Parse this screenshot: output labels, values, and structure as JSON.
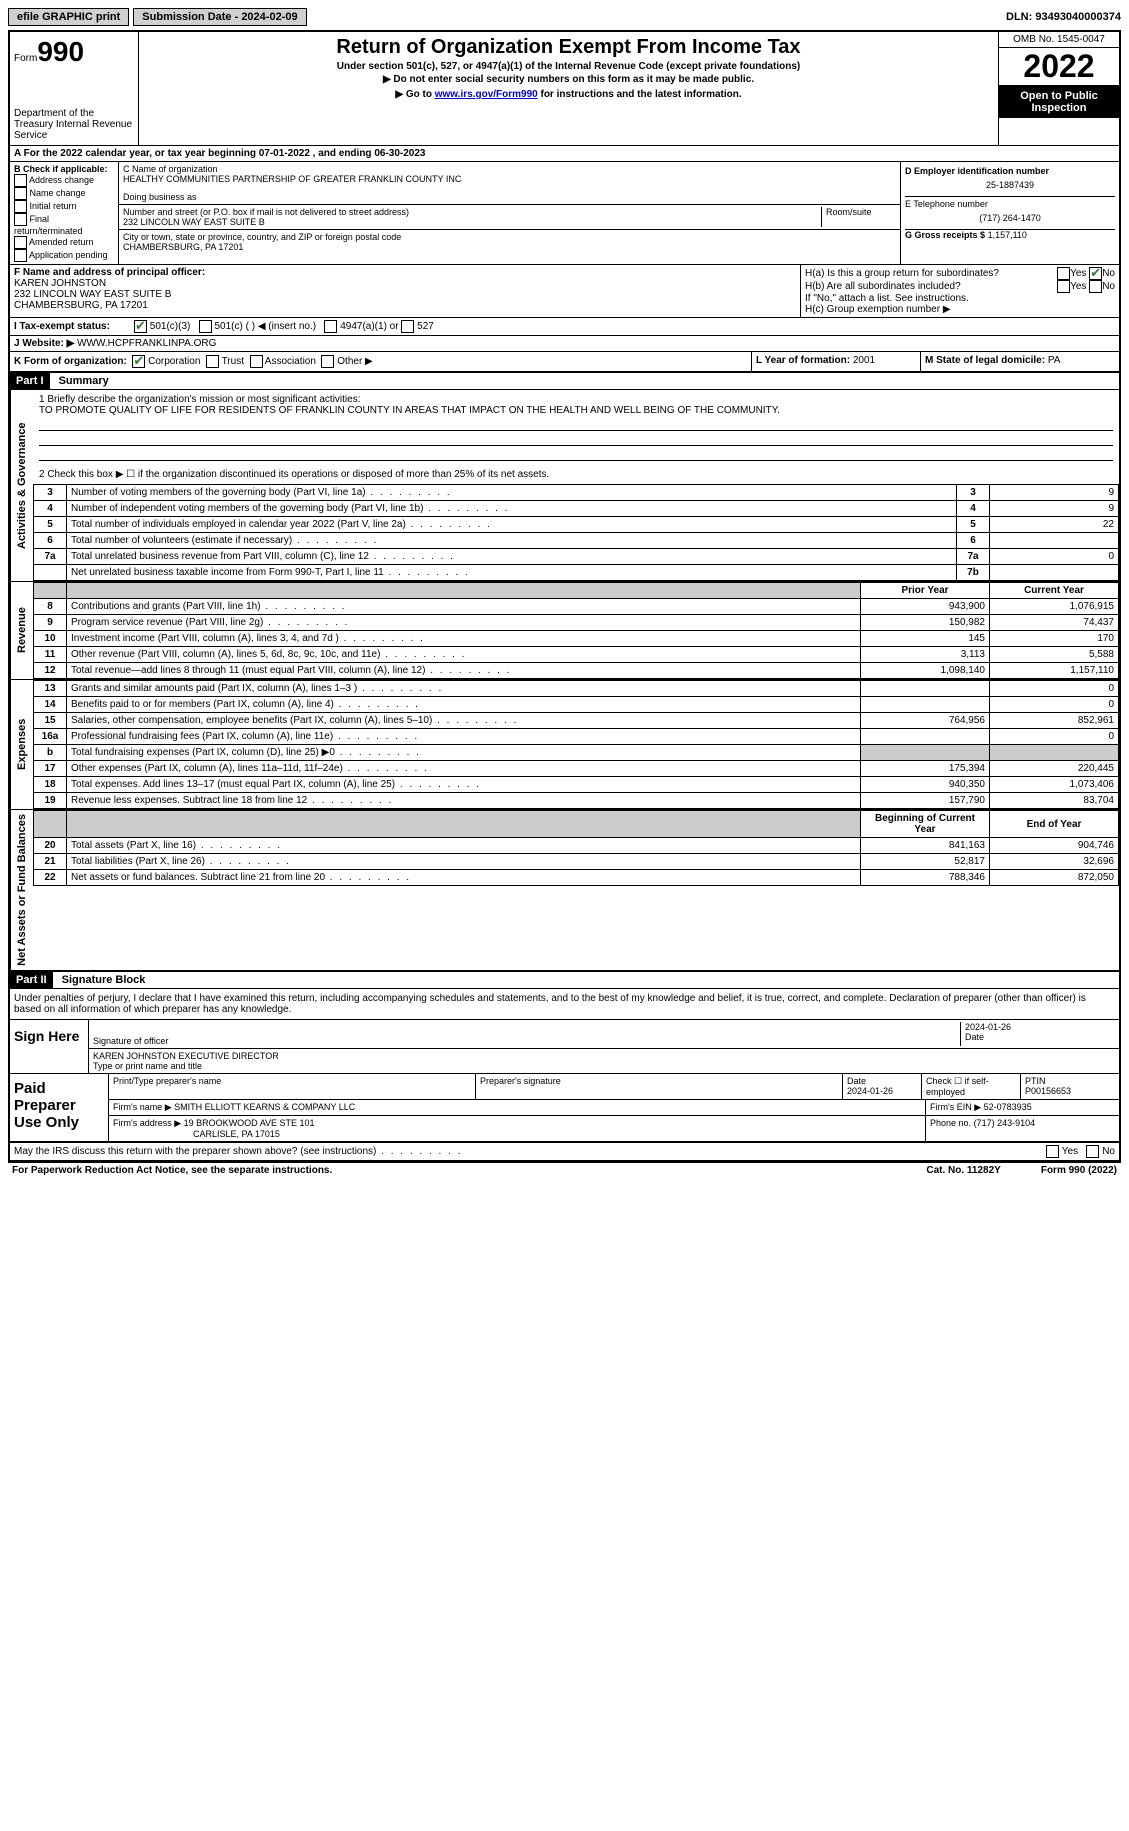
{
  "topbar": {
    "efile": "efile GRAPHIC print",
    "submission_label": "Submission Date - 2024-02-09",
    "dln": "DLN: 93493040000374"
  },
  "header": {
    "form_word": "Form",
    "form_num": "990",
    "dept": "Department of the Treasury Internal Revenue Service",
    "title": "Return of Organization Exempt From Income Tax",
    "sub1": "Under section 501(c), 527, or 4947(a)(1) of the Internal Revenue Code (except private foundations)",
    "sub2": "▶ Do not enter social security numbers on this form as it may be made public.",
    "sub3_pre": "▶ Go to ",
    "sub3_link": "www.irs.gov/Form990",
    "sub3_post": " for instructions and the latest information.",
    "omb": "OMB No. 1545-0047",
    "year": "2022",
    "open": "Open to Public Inspection"
  },
  "rowA": "A For the 2022 calendar year, or tax year beginning 07-01-2022    , and ending 06-30-2023",
  "colB": {
    "title": "B Check if applicable:",
    "opts": [
      "Address change",
      "Name change",
      "Initial return",
      "Final return/terminated",
      "Amended return",
      "Application pending"
    ]
  },
  "colC": {
    "name_label": "C Name of organization",
    "name": "HEALTHY COMMUNITIES PARTNERSHIP OF GREATER FRANKLIN COUNTY INC",
    "dba_label": "Doing business as",
    "street_label": "Number and street (or P.O. box if mail is not delivered to street address)",
    "room_label": "Room/suite",
    "street": "232 LINCOLN WAY EAST SUITE B",
    "city_label": "City or town, state or province, country, and ZIP or foreign postal code",
    "city": "CHAMBERSBURG, PA  17201"
  },
  "colD": {
    "ein_label": "D Employer identification number",
    "ein": "25-1887439",
    "phone_label": "E Telephone number",
    "phone": "(717) 264-1470",
    "gross_label": "G Gross receipts $",
    "gross": "1,157,110"
  },
  "rowF": {
    "label": "F  Name and address of principal officer:",
    "name": "KAREN JOHNSTON",
    "addr1": "232 LINCOLN WAY EAST SUITE B",
    "addr2": "CHAMBERSBURG, PA  17201"
  },
  "rowH": {
    "ha": "H(a)  Is this a group return for subordinates?",
    "hb": "H(b)  Are all subordinates included?",
    "hb_note": "If \"No,\" attach a list. See instructions.",
    "hc": "H(c)  Group exemption number ▶",
    "yes": "Yes",
    "no": "No"
  },
  "rowI": {
    "label": "I     Tax-exempt status:",
    "o1": "501(c)(3)",
    "o2": "501(c) (  ) ◀ (insert no.)",
    "o3": "4947(a)(1) or",
    "o4": "527"
  },
  "rowJ": {
    "label": "J    Website: ▶",
    "val": "WWW.HCPFRANKLINPA.ORG"
  },
  "rowK": {
    "label": "K Form of organization:",
    "o1": "Corporation",
    "o2": "Trust",
    "o3": "Association",
    "o4": "Other ▶",
    "l_label": "L Year of formation:",
    "l_val": "2001",
    "m_label": "M State of legal domicile:",
    "m_val": "PA"
  },
  "part1": {
    "part": "Part I",
    "title": "Summary",
    "vtab1": "Activities & Governance",
    "vtab2": "Revenue",
    "vtab3": "Expenses",
    "vtab4": "Net Assets or Fund Balances",
    "line1_label": "1  Briefly describe the organization's mission or most significant activities:",
    "line1_text": "TO PROMOTE QUALITY OF LIFE FOR RESIDENTS OF FRANKLIN COUNTY IN AREAS THAT IMPACT ON THE HEALTH AND WELL BEING OF THE COMMUNITY.",
    "line2": "2    Check this box ▶ ☐  if the organization discontinued its operations or disposed of more than 25% of its net assets.",
    "rows_ag": [
      {
        "n": "3",
        "label": "Number of voting members of the governing body (Part VI, line 1a)",
        "box": "3",
        "val": "9"
      },
      {
        "n": "4",
        "label": "Number of independent voting members of the governing body (Part VI, line 1b)",
        "box": "4",
        "val": "9"
      },
      {
        "n": "5",
        "label": "Total number of individuals employed in calendar year 2022 (Part V, line 2a)",
        "box": "5",
        "val": "22"
      },
      {
        "n": "6",
        "label": "Total number of volunteers (estimate if necessary)",
        "box": "6",
        "val": ""
      },
      {
        "n": "7a",
        "label": "Total unrelated business revenue from Part VIII, column (C), line 12",
        "box": "7a",
        "val": "0"
      },
      {
        "n": "",
        "label": "Net unrelated business taxable income from Form 990-T, Part I, line 11",
        "box": "7b",
        "val": ""
      }
    ],
    "prior_year": "Prior Year",
    "current_year": "Current Year",
    "rows_rev": [
      {
        "n": "8",
        "label": "Contributions and grants (Part VIII, line 1h)",
        "py": "943,900",
        "cy": "1,076,915"
      },
      {
        "n": "9",
        "label": "Program service revenue (Part VIII, line 2g)",
        "py": "150,982",
        "cy": "74,437"
      },
      {
        "n": "10",
        "label": "Investment income (Part VIII, column (A), lines 3, 4, and 7d )",
        "py": "145",
        "cy": "170"
      },
      {
        "n": "11",
        "label": "Other revenue (Part VIII, column (A), lines 5, 6d, 8c, 9c, 10c, and 11e)",
        "py": "3,113",
        "cy": "5,588"
      },
      {
        "n": "12",
        "label": "Total revenue—add lines 8 through 11 (must equal Part VIII, column (A), line 12)",
        "py": "1,098,140",
        "cy": "1,157,110"
      }
    ],
    "rows_exp": [
      {
        "n": "13",
        "label": "Grants and similar amounts paid (Part IX, column (A), lines 1–3 )",
        "py": "",
        "cy": "0"
      },
      {
        "n": "14",
        "label": "Benefits paid to or for members (Part IX, column (A), line 4)",
        "py": "",
        "cy": "0"
      },
      {
        "n": "15",
        "label": "Salaries, other compensation, employee benefits (Part IX, column (A), lines 5–10)",
        "py": "764,956",
        "cy": "852,961"
      },
      {
        "n": "16a",
        "label": "Professional fundraising fees (Part IX, column (A), line 11e)",
        "py": "",
        "cy": "0"
      },
      {
        "n": "b",
        "label": "Total fundraising expenses (Part IX, column (D), line 25) ▶0",
        "py": "shade",
        "cy": "shade"
      },
      {
        "n": "17",
        "label": "Other expenses (Part IX, column (A), lines 11a–11d, 11f–24e)",
        "py": "175,394",
        "cy": "220,445"
      },
      {
        "n": "18",
        "label": "Total expenses. Add lines 13–17 (must equal Part IX, column (A), line 25)",
        "py": "940,350",
        "cy": "1,073,406"
      },
      {
        "n": "19",
        "label": "Revenue less expenses. Subtract line 18 from line 12",
        "py": "157,790",
        "cy": "83,704"
      }
    ],
    "begin_year": "Beginning of Current Year",
    "end_year": "End of Year",
    "rows_net": [
      {
        "n": "20",
        "label": "Total assets (Part X, line 16)",
        "py": "841,163",
        "cy": "904,746"
      },
      {
        "n": "21",
        "label": "Total liabilities (Part X, line 26)",
        "py": "52,817",
        "cy": "32,696"
      },
      {
        "n": "22",
        "label": "Net assets or fund balances. Subtract line 21 from line 20",
        "py": "788,346",
        "cy": "872,050"
      }
    ]
  },
  "part2": {
    "part": "Part II",
    "title": "Signature Block",
    "decl": "Under penalties of perjury, I declare that I have examined this return, including accompanying schedules and statements, and to the best of my knowledge and belief, it is true, correct, and complete. Declaration of preparer (other than officer) is based on all information of which preparer has any knowledge.",
    "sign_here": "Sign Here",
    "sig_officer": "Signature of officer",
    "sig_date": "2024-01-26",
    "date_label": "Date",
    "officer_name": "KAREN JOHNSTON  EXECUTIVE DIRECTOR",
    "officer_label": "Type or print name and title",
    "paid": "Paid Preparer Use Only",
    "prep_name_label": "Print/Type preparer's name",
    "prep_sig_label": "Preparer's signature",
    "prep_date_label": "Date",
    "prep_date": "2024-01-26",
    "check_self": "Check ☐ if self-employed",
    "ptin_label": "PTIN",
    "ptin": "P00156653",
    "firm_name_label": "Firm's name    ▶",
    "firm_name": "SMITH ELLIOTT KEARNS & COMPANY LLC",
    "firm_ein_label": "Firm's EIN ▶",
    "firm_ein": "52-0783935",
    "firm_addr_label": "Firm's address ▶",
    "firm_addr": "19 BROOKWOOD AVE STE 101",
    "firm_city": "CARLISLE, PA  17015",
    "firm_phone_label": "Phone no.",
    "firm_phone": "(717) 243-9104"
  },
  "footer": {
    "irs_discuss": "May the IRS discuss this return with the preparer shown above? (see instructions)",
    "yes": "Yes",
    "no": "No",
    "paperwork": "For Paperwork Reduction Act Notice, see the separate instructions.",
    "cat": "Cat. No. 11282Y",
    "form": "Form 990 (2022)"
  }
}
